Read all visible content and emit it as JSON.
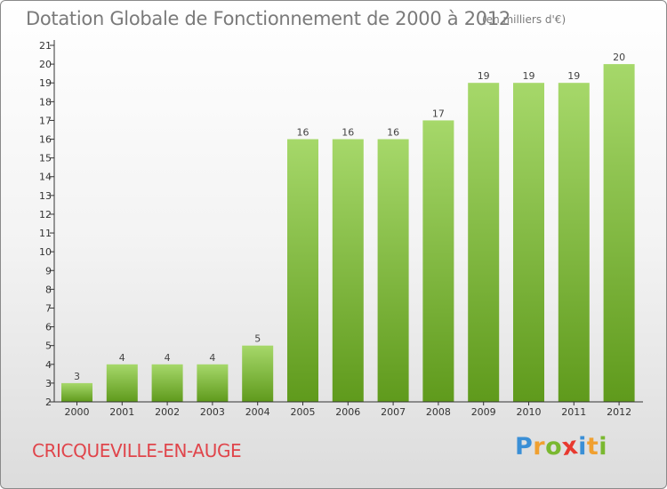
{
  "header": {
    "title": "Dotation Globale de Fonctionnement de 2000 à 2012",
    "unit": "(en milliers d'€)"
  },
  "footer": {
    "commune": "CRICQUEVILLE-EN-AUGE",
    "logo": {
      "letters": [
        "P",
        "r",
        "o",
        "x",
        "i",
        "t",
        "i"
      ],
      "colors": [
        "#3a8fd6",
        "#f0a030",
        "#7ab830",
        "#e8392f",
        "#3a8fd6",
        "#f0a030",
        "#7ab830"
      ]
    }
  },
  "colors": {
    "bar_top": "#a6d86a",
    "bar_bottom": "#5f9a1c",
    "axis": "#333333"
  },
  "chart_data": {
    "type": "bar",
    "title": "Dotation Globale de Fonctionnement de 2000 à 2012",
    "categories": [
      "2000",
      "2001",
      "2002",
      "2003",
      "2004",
      "2005",
      "2006",
      "2007",
      "2008",
      "2009",
      "2010",
      "2011",
      "2012"
    ],
    "values": [
      3,
      4,
      4,
      4,
      5,
      16,
      16,
      16,
      17,
      19,
      19,
      19,
      20
    ],
    "ylim": [
      2,
      21
    ],
    "yticks": [
      2,
      3,
      4,
      5,
      6,
      7,
      8,
      9,
      10,
      11,
      12,
      13,
      14,
      15,
      16,
      17,
      18,
      19,
      20,
      21
    ],
    "grid": false,
    "data_labels": true
  }
}
